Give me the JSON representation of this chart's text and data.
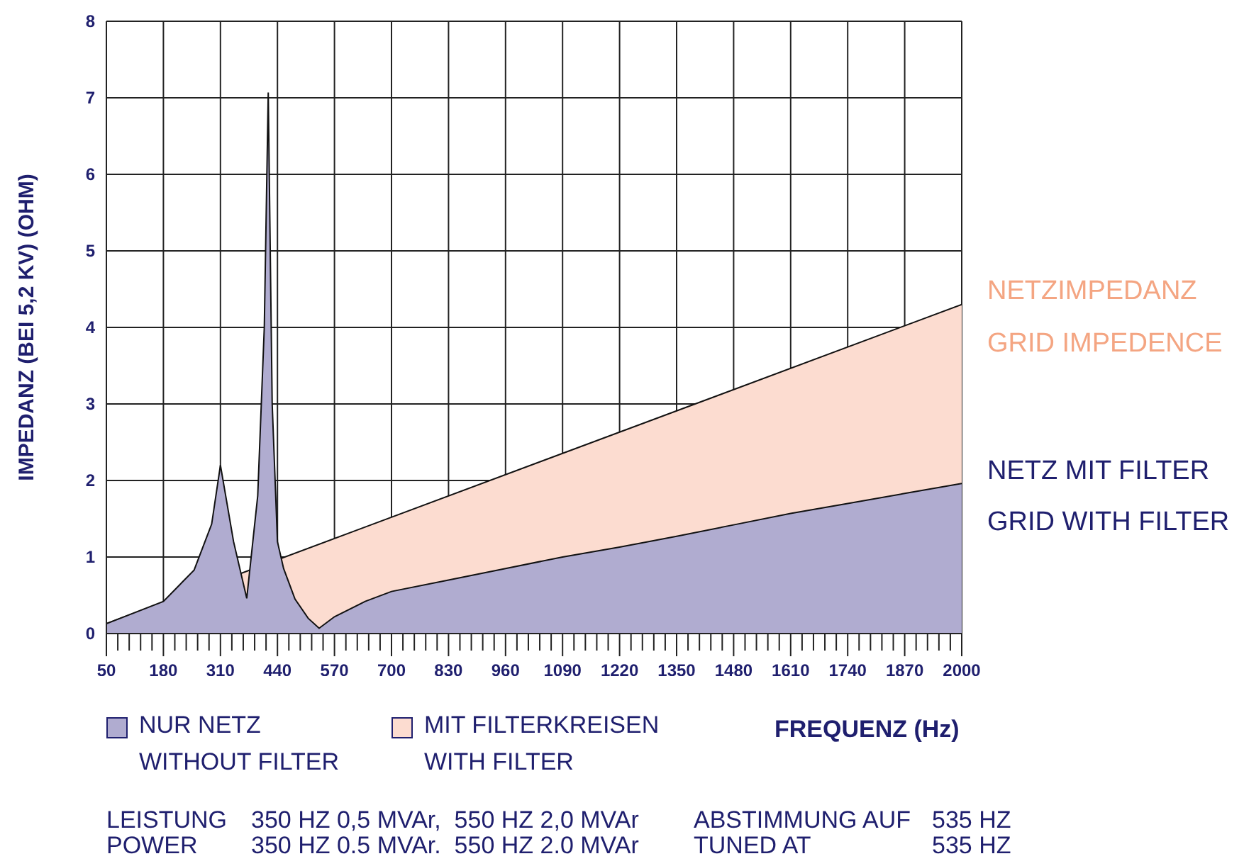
{
  "chart_data": {
    "type": "area",
    "xlabel": "FREQUENZ (Hz)",
    "ylabel": "IMPEDANZ (BEI 5,2 KV) (OHM)",
    "xlim": [
      50,
      2000
    ],
    "ylim": [
      0,
      8
    ],
    "yticks": [
      0,
      1,
      2,
      3,
      4,
      5,
      6,
      7,
      8
    ],
    "xticks": [
      50,
      {
        "value": 76,
        "label": null
      },
      {
        "value": 102,
        "label": null
      },
      {
        "value": 128,
        "label": null
      },
      {
        "value": 154,
        "label": null
      },
      180,
      {
        "value": 206,
        "label": null
      },
      {
        "value": 232,
        "label": null
      },
      {
        "value": 258,
        "label": null
      },
      {
        "value": 284,
        "label": null
      },
      310,
      {
        "value": 336,
        "label": null
      },
      {
        "value": 362,
        "label": null
      },
      {
        "value": 388,
        "label": null
      },
      {
        "value": 414,
        "label": null
      },
      440,
      {
        "value": 466,
        "label": null
      },
      {
        "value": 492,
        "label": null
      },
      {
        "value": 518,
        "label": null
      },
      {
        "value": 544,
        "label": null
      },
      570,
      {
        "value": 596,
        "label": null
      },
      {
        "value": 622,
        "label": null
      },
      {
        "value": 648,
        "label": null
      },
      {
        "value": 674,
        "label": null
      },
      700,
      {
        "value": 726,
        "label": null
      },
      {
        "value": 752,
        "label": null
      },
      {
        "value": 778,
        "label": null
      },
      {
        "value": 804,
        "label": null
      },
      830,
      {
        "value": 856,
        "label": null
      },
      {
        "value": 882,
        "label": null
      },
      {
        "value": 908,
        "label": null
      },
      {
        "value": 934,
        "label": null
      },
      960,
      {
        "value": 986,
        "label": null
      },
      {
        "value": 1012,
        "label": null
      },
      {
        "value": 1038,
        "label": null
      },
      {
        "value": 1064,
        "label": null
      },
      1090,
      {
        "value": 1116,
        "label": null
      },
      {
        "value": 1142,
        "label": null
      },
      {
        "value": 1168,
        "label": null
      },
      {
        "value": 1194,
        "label": null
      },
      1220,
      {
        "value": 1246,
        "label": null
      },
      {
        "value": 1272,
        "label": null
      },
      {
        "value": 1298,
        "label": null
      },
      {
        "value": 1324,
        "label": null
      },
      1350,
      {
        "value": 1376,
        "label": null
      },
      {
        "value": 1402,
        "label": null
      },
      {
        "value": 1428,
        "label": null
      },
      {
        "value": 1454,
        "label": null
      },
      1480,
      {
        "value": 1506,
        "label": null
      },
      {
        "value": 1532,
        "label": null
      },
      {
        "value": 1558,
        "label": null
      },
      {
        "value": 1584,
        "label": null
      },
      1610,
      {
        "value": 1636,
        "label": null
      },
      {
        "value": 1662,
        "label": null
      },
      {
        "value": 1688,
        "label": null
      },
      {
        "value": 1714,
        "label": null
      },
      1740,
      {
        "value": 1766,
        "label": null
      },
      {
        "value": 1792,
        "label": null
      },
      {
        "value": 1818,
        "label": null
      },
      {
        "value": 1844,
        "label": null
      },
      1870,
      {
        "value": 1896,
        "label": null
      },
      {
        "value": 1922,
        "label": null
      },
      {
        "value": 1948,
        "label": null
      },
      {
        "value": 1974,
        "label": null
      },
      2000
    ],
    "grid": true,
    "legend": "bottom",
    "series": [
      {
        "name": "MIT FILTERKREISEN\nWITH FILTER",
        "color": "#fcdcd0",
        "x": [
          50,
          2000
        ],
        "values": [
          0.13,
          4.3
        ]
      },
      {
        "name": "NUR NETZ\nWITHOUT FILTER",
        "color": "#b0acd0",
        "x": [
          50,
          180,
          250,
          290,
          310,
          340,
          370,
          395,
          410,
          419,
          428,
          440,
          454,
          480,
          510,
          535,
          570,
          640,
          700,
          830,
          960,
          1090,
          1220,
          1350,
          1480,
          1610,
          1740,
          1870,
          2000
        ],
        "values": [
          0.13,
          0.42,
          0.83,
          1.43,
          2.2,
          1.2,
          0.46,
          1.8,
          4.0,
          7.07,
          3.0,
          1.2,
          0.85,
          0.45,
          0.2,
          0.07,
          0.22,
          0.42,
          0.55,
          0.7,
          0.85,
          1.0,
          1.13,
          1.27,
          1.42,
          1.57,
          1.7,
          1.83,
          1.96
        ]
      }
    ],
    "annotations": [
      "NETZIMPEDANZ",
      "GRID IMPEDENCE",
      "NETZ MIT FILTER",
      "GRID WITH FILTER",
      "LEISTUNG",
      "350 HZ 0,5 MVAr,  550 HZ 2,0 MVAr",
      "ABSTIMMUNG AUF",
      "535 HZ",
      "POWER",
      "350 HZ 0.5 MVAr.  550 HZ 2.0 MVAr",
      "TUNED AT",
      "535 HZ"
    ]
  }
}
